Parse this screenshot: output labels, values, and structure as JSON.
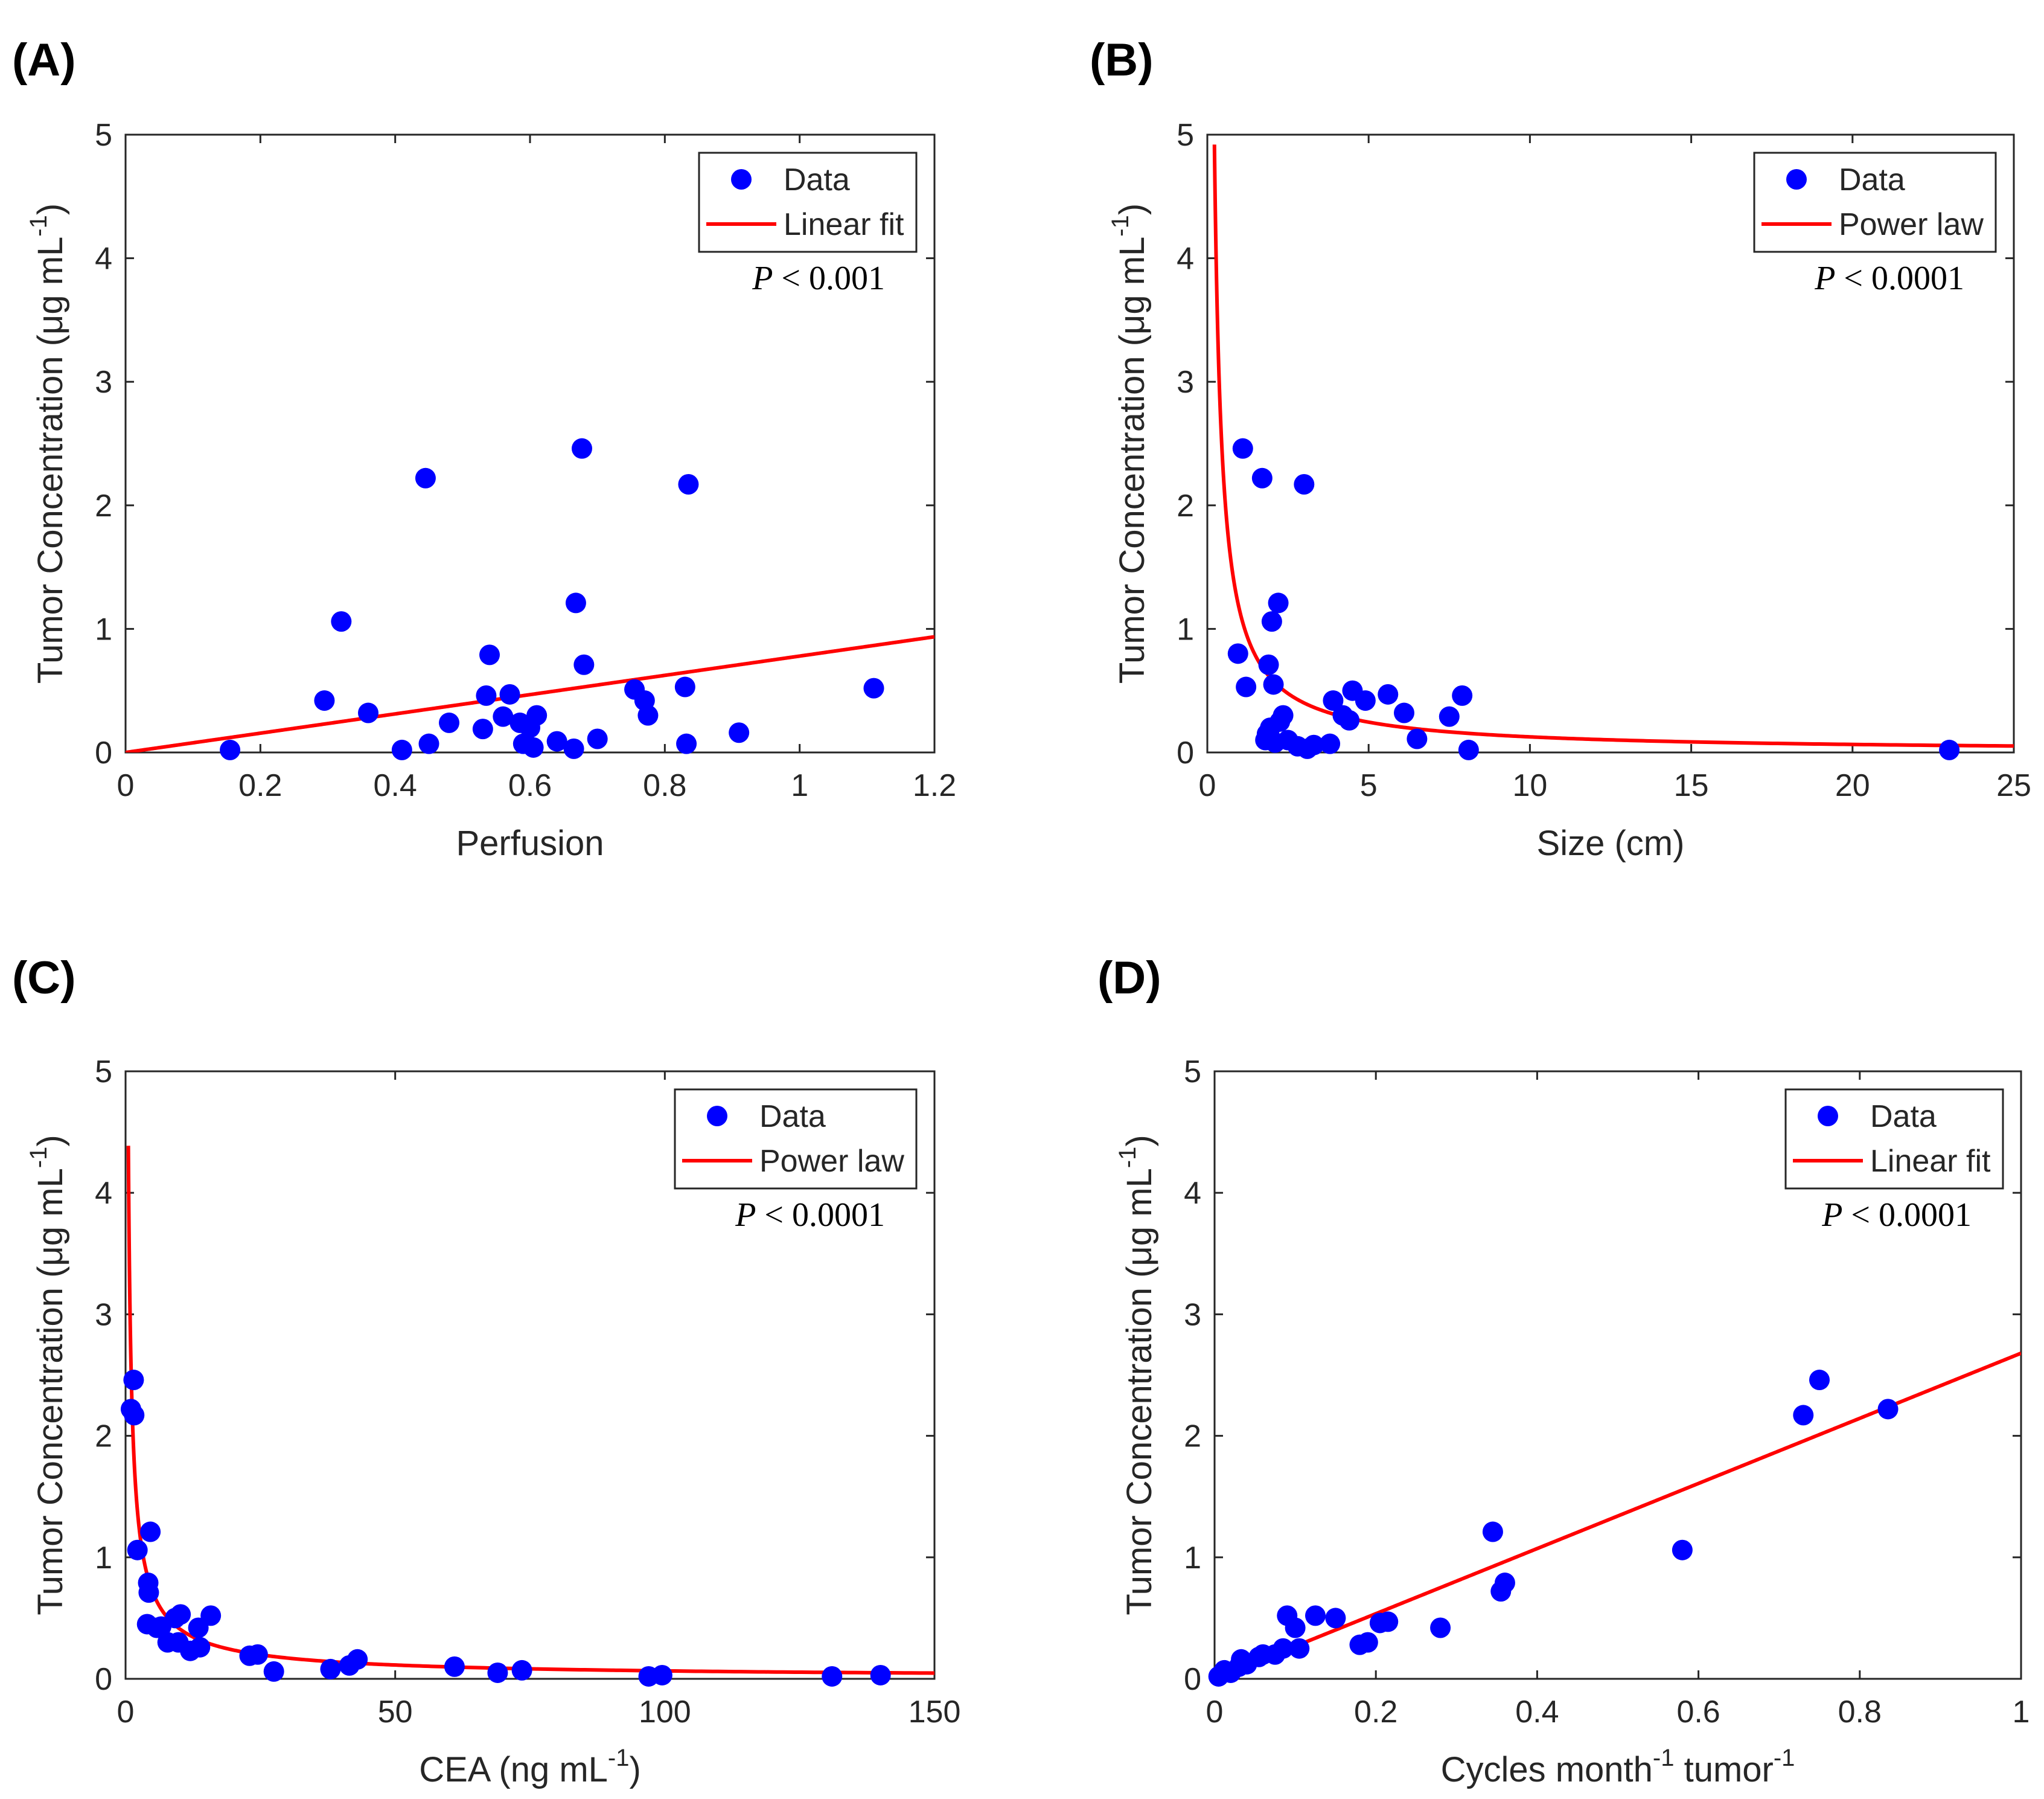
{
  "figure": {
    "background": "#ffffff",
    "marker_color": "#0000ff",
    "fit_color": "#ff0000",
    "axis_color": "#262626"
  },
  "chart_data": [
    {
      "panel": "(A)",
      "type": "scatter",
      "xlabel": "Perfusion",
      "ylabel": "Tumor Concentration (μg mL",
      "ylabel_sup": "-1",
      "ylabel_tail": ")",
      "xlim": [
        0,
        1.2
      ],
      "ylim": [
        0,
        5
      ],
      "xticks": [
        0,
        0.2,
        0.4,
        0.6,
        0.8,
        1,
        1.2
      ],
      "xtick_labels": [
        "0",
        "0.2",
        "0.4",
        "0.6",
        "0.8",
        "1",
        "1.2"
      ],
      "yticks": [
        0,
        1,
        2,
        3,
        4,
        5
      ],
      "ytick_labels": [
        "0",
        "1",
        "2",
        "3",
        "4",
        "5"
      ],
      "legend": [
        "Data",
        "Linear fit"
      ],
      "annotation": {
        "p": "P",
        "rest": " < 0.001"
      },
      "fit": {
        "kind": "linear",
        "a": 0.78,
        "b": 0.0
      },
      "points": [
        [
          0.155,
          0.02
        ],
        [
          0.295,
          0.42
        ],
        [
          0.32,
          1.06
        ],
        [
          0.36,
          0.32
        ],
        [
          0.41,
          0.02
        ],
        [
          0.445,
          2.22
        ],
        [
          0.45,
          0.07
        ],
        [
          0.48,
          0.24
        ],
        [
          0.53,
          0.19
        ],
        [
          0.535,
          0.46
        ],
        [
          0.54,
          0.79
        ],
        [
          0.56,
          0.29
        ],
        [
          0.57,
          0.47
        ],
        [
          0.585,
          0.24
        ],
        [
          0.59,
          0.07
        ],
        [
          0.6,
          0.2
        ],
        [
          0.605,
          0.04
        ],
        [
          0.61,
          0.3
        ],
        [
          0.64,
          0.09
        ],
        [
          0.665,
          0.03
        ],
        [
          0.668,
          1.21
        ],
        [
          0.677,
          2.46
        ],
        [
          0.68,
          0.71
        ],
        [
          0.7,
          0.11
        ],
        [
          0.755,
          0.51
        ],
        [
          0.77,
          0.42
        ],
        [
          0.775,
          0.3
        ],
        [
          0.83,
          0.53
        ],
        [
          0.832,
          0.07
        ],
        [
          0.835,
          2.17
        ],
        [
          0.91,
          0.16
        ],
        [
          1.11,
          0.52
        ]
      ]
    },
    {
      "panel": "(B)",
      "type": "scatter",
      "xlabel": "Size (cm)",
      "ylabel": "Tumor Concentration (μg mL",
      "ylabel_sup": "-1",
      "ylabel_tail": ")",
      "xlim": [
        0,
        25
      ],
      "ylim": [
        0,
        5
      ],
      "xticks": [
        0,
        5,
        10,
        15,
        20,
        25
      ],
      "xtick_labels": [
        "0",
        "5",
        "10",
        "15",
        "20",
        "25"
      ],
      "yticks": [
        0,
        1,
        2,
        3,
        4,
        5
      ],
      "ytick_labels": [
        "0",
        "1",
        "2",
        "3",
        "4",
        "5"
      ],
      "legend": [
        "Data",
        "Power law"
      ],
      "annotation": {
        "p": "P",
        "rest": " < 0.0001"
      },
      "fit": {
        "kind": "power",
        "a": 1.15,
        "b": -0.96,
        "xmin": 0.22
      },
      "points": [
        [
          0.95,
          0.8
        ],
        [
          1.1,
          2.46
        ],
        [
          1.2,
          0.53
        ],
        [
          1.7,
          2.22
        ],
        [
          1.8,
          0.1
        ],
        [
          1.85,
          0.15
        ],
        [
          1.9,
          0.71
        ],
        [
          1.95,
          0.2
        ],
        [
          2.0,
          1.06
        ],
        [
          2.05,
          0.55
        ],
        [
          2.1,
          0.08
        ],
        [
          2.2,
          1.21
        ],
        [
          2.25,
          0.25
        ],
        [
          2.35,
          0.3
        ],
        [
          2.5,
          0.1
        ],
        [
          2.8,
          0.05
        ],
        [
          3.0,
          2.17
        ],
        [
          3.1,
          0.03
        ],
        [
          3.3,
          0.06
        ],
        [
          3.8,
          0.07
        ],
        [
          3.9,
          0.42
        ],
        [
          4.2,
          0.3
        ],
        [
          4.4,
          0.26
        ],
        [
          4.5,
          0.5
        ],
        [
          4.9,
          0.42
        ],
        [
          5.6,
          0.47
        ],
        [
          6.1,
          0.32
        ],
        [
          6.5,
          0.11
        ],
        [
          7.5,
          0.29
        ],
        [
          7.9,
          0.46
        ],
        [
          8.1,
          0.02
        ],
        [
          23.0,
          0.02
        ]
      ]
    },
    {
      "panel": "(C)",
      "type": "scatter",
      "xlabel": "CEA (ng mL",
      "xlabel_sup": "-1",
      "xlabel_tail": ")",
      "ylabel": "Tumor Concentration (μg mL",
      "ylabel_sup": "-1",
      "ylabel_tail": ")",
      "xlim": [
        0,
        150
      ],
      "ylim": [
        0,
        5
      ],
      "xticks": [
        0,
        50,
        100,
        150
      ],
      "xtick_labels": [
        "0",
        "50",
        "100",
        "150"
      ],
      "yticks": [
        0,
        1,
        2,
        3,
        4,
        5
      ],
      "ytick_labels": [
        "0",
        "1",
        "2",
        "3",
        "4",
        "5"
      ],
      "legend": [
        "Data",
        "Power law"
      ],
      "annotation": {
        "p": "P",
        "rest": " < 0.0001"
      },
      "fit": {
        "kind": "power",
        "a": 2.6,
        "b": -0.8,
        "xmin": 0.52
      },
      "points": [
        [
          1.0,
          2.22
        ],
        [
          1.5,
          2.46
        ],
        [
          1.6,
          2.17
        ],
        [
          2.2,
          1.06
        ],
        [
          4.0,
          0.45
        ],
        [
          4.2,
          0.79
        ],
        [
          4.3,
          0.71
        ],
        [
          4.6,
          1.21
        ],
        [
          5.8,
          0.42
        ],
        [
          6.6,
          0.43
        ],
        [
          7.8,
          0.3
        ],
        [
          9.2,
          0.5
        ],
        [
          9.8,
          0.3
        ],
        [
          10.2,
          0.53
        ],
        [
          12.0,
          0.23
        ],
        [
          13.5,
          0.42
        ],
        [
          13.8,
          0.26
        ],
        [
          15.8,
          0.52
        ],
        [
          23.0,
          0.19
        ],
        [
          24.5,
          0.2
        ],
        [
          27.5,
          0.06
        ],
        [
          38.0,
          0.08
        ],
        [
          41.5,
          0.11
        ],
        [
          43.0,
          0.16
        ],
        [
          61.0,
          0.1
        ],
        [
          69.0,
          0.05
        ],
        [
          73.5,
          0.07
        ],
        [
          97.0,
          0.02
        ],
        [
          99.5,
          0.03
        ],
        [
          131.0,
          0.02
        ],
        [
          140.0,
          0.03
        ]
      ]
    },
    {
      "panel": "(D)",
      "type": "scatter",
      "xlabel": "Cycles month",
      "xlabel_sup": "-1",
      "xlabel_mid": " tumor",
      "xlabel_sup2": "-1",
      "ylabel": "Tumor Concentration (μg mL",
      "ylabel_sup": "-1",
      "ylabel_tail": ")",
      "xlim": [
        0,
        1
      ],
      "ylim": [
        0,
        5
      ],
      "xticks": [
        0,
        0.2,
        0.4,
        0.6,
        0.8,
        1
      ],
      "xtick_labels": [
        "0",
        "0.2",
        "0.4",
        "0.6",
        "0.8",
        "1"
      ],
      "yticks": [
        0,
        1,
        2,
        3,
        4,
        5
      ],
      "ytick_labels": [
        "0",
        "1",
        "2",
        "3",
        "4",
        "5"
      ],
      "legend": [
        "Data",
        "Linear fit"
      ],
      "annotation": {
        "p": "P",
        "rest": " < 0.0001"
      },
      "fit": {
        "kind": "linear",
        "a": 2.68,
        "b": 0.0
      },
      "points": [
        [
          0.005,
          0.02
        ],
        [
          0.012,
          0.07
        ],
        [
          0.02,
          0.05
        ],
        [
          0.03,
          0.1
        ],
        [
          0.033,
          0.16
        ],
        [
          0.04,
          0.12
        ],
        [
          0.055,
          0.18
        ],
        [
          0.06,
          0.2
        ],
        [
          0.075,
          0.2
        ],
        [
          0.085,
          0.25
        ],
        [
          0.09,
          0.52
        ],
        [
          0.1,
          0.42
        ],
        [
          0.105,
          0.25
        ],
        [
          0.125,
          0.52
        ],
        [
          0.15,
          0.5
        ],
        [
          0.18,
          0.28
        ],
        [
          0.19,
          0.3
        ],
        [
          0.205,
          0.46
        ],
        [
          0.215,
          0.47
        ],
        [
          0.28,
          0.42
        ],
        [
          0.345,
          1.21
        ],
        [
          0.355,
          0.72
        ],
        [
          0.36,
          0.79
        ],
        [
          0.58,
          1.06
        ],
        [
          0.73,
          2.17
        ],
        [
          0.75,
          2.46
        ],
        [
          0.835,
          2.22
        ]
      ]
    }
  ]
}
